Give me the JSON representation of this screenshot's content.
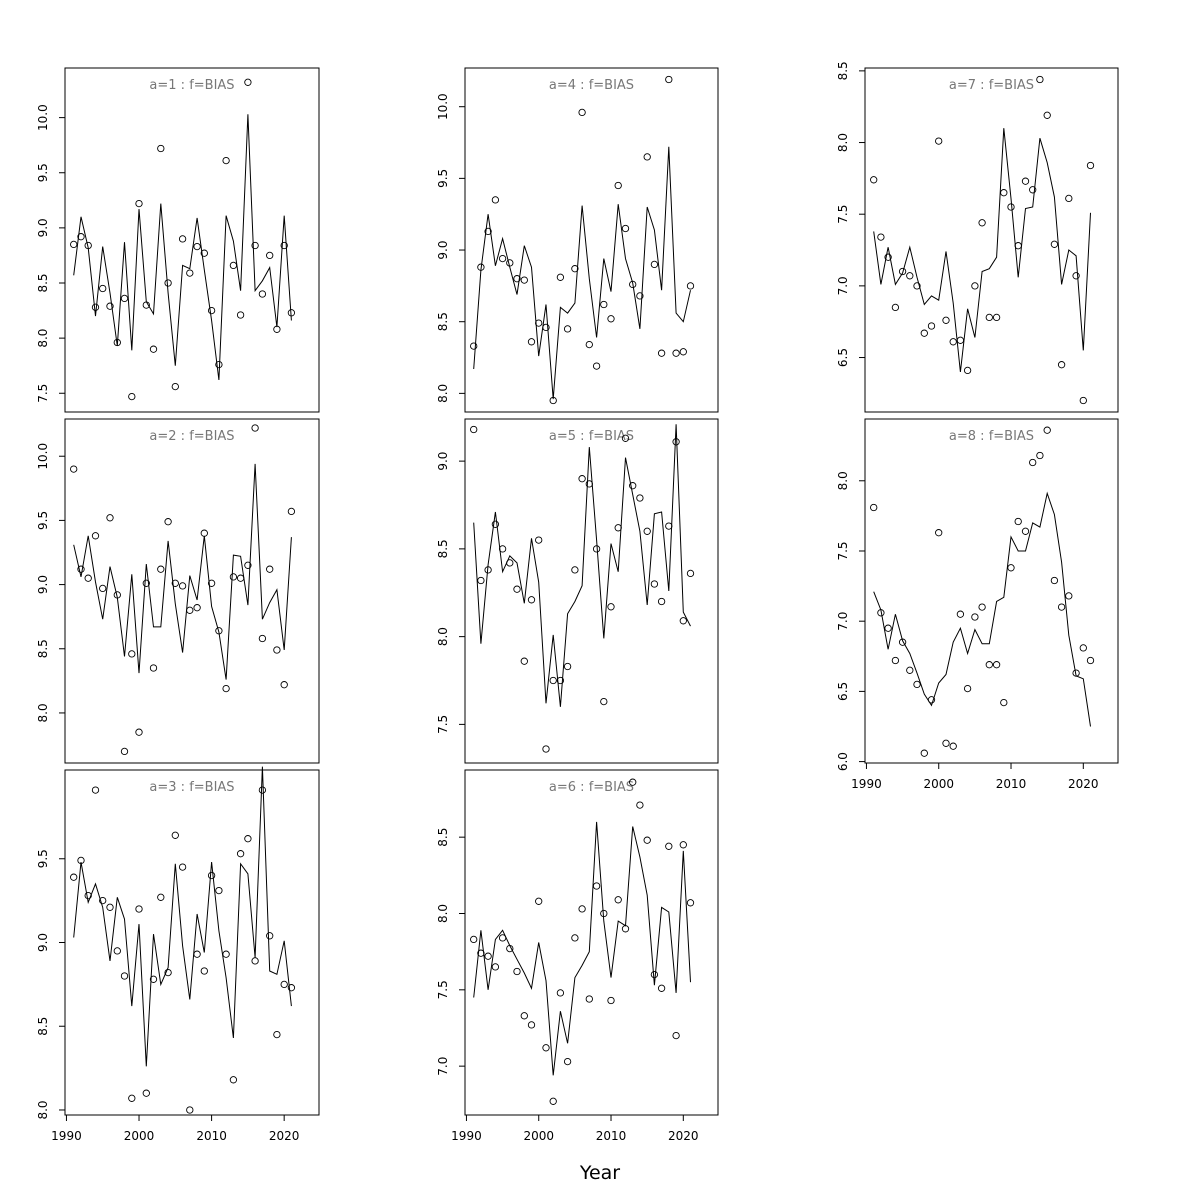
{
  "figure": {
    "xlabel": "Year"
  },
  "chart_data": [
    {
      "type": "line",
      "title": "a=1 : f=BIAS",
      "x": [
        1991,
        1992,
        1993,
        1994,
        1995,
        1996,
        1997,
        1998,
        1999,
        2000,
        2001,
        2002,
        2003,
        2004,
        2005,
        2006,
        2007,
        2008,
        2009,
        2010,
        2011,
        2012,
        2013,
        2014,
        2015,
        2016,
        2017,
        2018,
        2019,
        2020,
        2021
      ],
      "series": [
        {
          "name": "",
          "kind": "points",
          "values": [
            8.85,
            8.92,
            8.84,
            8.28,
            8.45,
            8.29,
            7.96,
            8.36,
            7.47,
            9.22,
            8.3,
            7.9,
            9.72,
            8.5,
            7.56,
            8.9,
            8.59,
            8.83,
            8.77,
            8.25,
            7.76,
            9.61,
            8.66,
            8.21,
            10.32,
            8.84,
            8.4,
            8.75,
            8.08,
            8.84,
            8.23
          ]
        },
        {
          "name": "",
          "kind": "line",
          "values": [
            8.57,
            9.1,
            8.82,
            8.2,
            8.83,
            8.41,
            7.93,
            8.87,
            7.89,
            9.17,
            8.33,
            8.22,
            9.22,
            8.41,
            7.75,
            8.66,
            8.63,
            9.09,
            8.62,
            8.16,
            7.62,
            9.11,
            8.88,
            8.43,
            10.03,
            8.43,
            8.52,
            8.64,
            8.1,
            9.11,
            8.16
          ]
        }
      ],
      "xlim": [
        1989.8,
        2024.8
      ],
      "ylim": [
        7.33,
        10.45
      ],
      "yticks": [
        7.5,
        8.0,
        8.5,
        9.0,
        9.5,
        10.0
      ],
      "xticks": []
    },
    {
      "type": "line",
      "title": "a=2 : f=BIAS",
      "x": [
        1991,
        1992,
        1993,
        1994,
        1995,
        1996,
        1997,
        1998,
        1999,
        2000,
        2001,
        2002,
        2003,
        2004,
        2005,
        2006,
        2007,
        2008,
        2009,
        2010,
        2011,
        2012,
        2013,
        2014,
        2015,
        2016,
        2017,
        2018,
        2019,
        2020,
        2021
      ],
      "series": [
        {
          "name": "",
          "kind": "points",
          "values": [
            9.9,
            9.12,
            9.05,
            9.38,
            8.97,
            9.52,
            8.92,
            7.7,
            8.46,
            7.85,
            9.01,
            8.35,
            9.12,
            9.49,
            9.01,
            8.99,
            8.8,
            8.82,
            9.4,
            9.01,
            8.64,
            8.19,
            9.06,
            9.05,
            9.15,
            10.22,
            8.58,
            9.12,
            8.49,
            8.22,
            9.57
          ]
        },
        {
          "name": "",
          "kind": "line",
          "values": [
            9.31,
            9.06,
            9.38,
            9.02,
            8.73,
            9.14,
            8.9,
            8.44,
            9.08,
            8.31,
            9.16,
            8.67,
            8.67,
            9.34,
            8.85,
            8.47,
            9.07,
            8.88,
            9.38,
            8.83,
            8.63,
            8.26,
            9.23,
            9.22,
            8.84,
            9.94,
            8.73,
            8.86,
            8.96,
            8.49,
            9.37
          ]
        }
      ],
      "xlim": [
        1989.8,
        2024.8
      ],
      "ylim": [
        7.61,
        10.29
      ],
      "yticks": [
        8.0,
        8.5,
        9.0,
        9.5,
        10.0
      ],
      "xticks": []
    },
    {
      "type": "line",
      "title": "a=3 : f=BIAS",
      "x": [
        1991,
        1992,
        1993,
        1994,
        1995,
        1996,
        1997,
        1998,
        1999,
        2000,
        2001,
        2002,
        2003,
        2004,
        2005,
        2006,
        2007,
        2008,
        2009,
        2010,
        2011,
        2012,
        2013,
        2014,
        2015,
        2016,
        2017,
        2018,
        2019,
        2020,
        2021
      ],
      "series": [
        {
          "name": "",
          "kind": "points",
          "values": [
            9.39,
            9.49,
            9.28,
            9.91,
            9.25,
            9.21,
            8.95,
            8.8,
            8.07,
            9.2,
            8.1,
            8.78,
            9.27,
            8.82,
            9.64,
            9.45,
            8.0,
            8.93,
            8.83,
            9.4,
            9.31,
            8.93,
            8.18,
            9.53,
            9.62,
            8.89,
            9.91,
            9.04,
            8.45,
            8.75,
            8.73
          ]
        },
        {
          "name": "",
          "kind": "line",
          "values": [
            9.03,
            9.48,
            9.24,
            9.35,
            9.21,
            8.89,
            9.27,
            9.14,
            8.62,
            9.11,
            8.26,
            9.05,
            8.75,
            8.85,
            9.47,
            8.98,
            8.66,
            9.17,
            8.94,
            9.48,
            9.07,
            8.79,
            8.43,
            9.47,
            9.41,
            8.91,
            10.05,
            8.83,
            8.81,
            9.01,
            8.62
          ]
        }
      ],
      "xlim": [
        1989.8,
        2024.8
      ],
      "ylim": [
        7.97,
        10.03
      ],
      "yticks": [
        8.0,
        8.5,
        9.0,
        9.5
      ],
      "xticks": [
        1990,
        2000,
        2010,
        2020
      ]
    },
    {
      "type": "line",
      "title": "a=4 : f=BIAS",
      "x": [
        1991,
        1992,
        1993,
        1994,
        1995,
        1996,
        1997,
        1998,
        1999,
        2000,
        2001,
        2002,
        2003,
        2004,
        2005,
        2006,
        2007,
        2008,
        2009,
        2010,
        2011,
        2012,
        2013,
        2014,
        2015,
        2016,
        2017,
        2018,
        2019,
        2020,
        2021
      ],
      "series": [
        {
          "name": "",
          "kind": "points",
          "values": [
            8.33,
            8.88,
            9.13,
            9.35,
            8.94,
            8.91,
            8.8,
            8.79,
            8.36,
            8.49,
            8.46,
            7.95,
            8.81,
            8.45,
            8.87,
            9.96,
            8.34,
            8.19,
            8.62,
            8.52,
            9.45,
            9.15,
            8.76,
            8.68,
            9.65,
            8.9,
            8.28,
            10.19,
            8.28,
            8.29,
            8.75
          ]
        },
        {
          "name": "",
          "kind": "line",
          "values": [
            8.17,
            8.86,
            9.25,
            8.89,
            9.08,
            8.88,
            8.69,
            9.03,
            8.88,
            8.26,
            8.62,
            7.96,
            8.6,
            8.56,
            8.63,
            9.31,
            8.8,
            8.39,
            8.94,
            8.71,
            9.32,
            8.94,
            8.77,
            8.45,
            9.3,
            9.14,
            8.72,
            9.72,
            8.56,
            8.5,
            8.72
          ]
        }
      ],
      "xlim": [
        1989.8,
        2024.8
      ],
      "ylim": [
        7.87,
        10.27
      ],
      "yticks": [
        8.0,
        8.5,
        9.0,
        9.5,
        10.0
      ],
      "xticks": []
    },
    {
      "type": "line",
      "title": "a=5 : f=BIAS",
      "x": [
        1991,
        1992,
        1993,
        1994,
        1995,
        1996,
        1997,
        1998,
        1999,
        2000,
        2001,
        2002,
        2003,
        2004,
        2005,
        2006,
        2007,
        2008,
        2009,
        2010,
        2011,
        2012,
        2013,
        2014,
        2015,
        2016,
        2017,
        2018,
        2019,
        2020,
        2021
      ],
      "series": [
        {
          "name": "",
          "kind": "points",
          "values": [
            9.18,
            8.32,
            8.38,
            8.64,
            8.5,
            8.42,
            8.27,
            7.86,
            8.21,
            8.55,
            7.36,
            7.75,
            7.75,
            7.83,
            8.38,
            8.9,
            8.87,
            8.5,
            7.63,
            8.17,
            8.62,
            9.13,
            8.86,
            8.79,
            8.6,
            8.3,
            8.2,
            8.63,
            9.11,
            8.09,
            8.36
          ]
        },
        {
          "name": "",
          "kind": "line",
          "values": [
            8.65,
            7.96,
            8.41,
            8.71,
            8.37,
            8.46,
            8.42,
            8.19,
            8.56,
            8.31,
            7.62,
            8.01,
            7.6,
            8.13,
            8.2,
            8.29,
            9.08,
            8.55,
            7.99,
            8.53,
            8.37,
            9.02,
            8.81,
            8.6,
            8.18,
            8.7,
            8.71,
            8.26,
            9.21,
            8.14,
            8.06
          ]
        }
      ],
      "xlim": [
        1989.8,
        2024.8
      ],
      "ylim": [
        7.28,
        9.24
      ],
      "yticks": [
        7.5,
        8.0,
        8.5,
        9.0
      ],
      "xticks": []
    },
    {
      "type": "line",
      "title": "a=6 : f=BIAS",
      "x": [
        1991,
        1992,
        1993,
        1994,
        1995,
        1996,
        1997,
        1998,
        1999,
        2000,
        2001,
        2002,
        2003,
        2004,
        2005,
        2006,
        2007,
        2008,
        2009,
        2010,
        2011,
        2012,
        2013,
        2014,
        2015,
        2016,
        2017,
        2018,
        2019,
        2020,
        2021
      ],
      "series": [
        {
          "name": "",
          "kind": "points",
          "values": [
            7.83,
            7.74,
            7.72,
            7.65,
            7.84,
            7.77,
            7.62,
            7.33,
            7.27,
            8.08,
            7.12,
            6.77,
            7.48,
            7.03,
            7.84,
            8.03,
            7.44,
            8.18,
            8.0,
            7.43,
            8.09,
            7.9,
            8.86,
            8.71,
            8.48,
            7.6,
            7.51,
            8.44,
            7.2,
            8.45,
            8.07
          ]
        },
        {
          "name": "",
          "kind": "line",
          "values": [
            7.45,
            7.89,
            7.5,
            7.83,
            7.89,
            7.79,
            7.7,
            7.61,
            7.51,
            7.81,
            7.56,
            6.94,
            7.36,
            7.15,
            7.58,
            7.66,
            7.75,
            8.6,
            7.95,
            7.58,
            7.95,
            7.92,
            8.57,
            8.37,
            8.12,
            7.53,
            8.04,
            8.01,
            7.48,
            8.41,
            7.55
          ]
        }
      ],
      "xlim": [
        1989.8,
        2024.8
      ],
      "ylim": [
        6.68,
        8.94
      ],
      "yticks": [
        7.0,
        7.5,
        8.0,
        8.5
      ],
      "xticks": [
        1990,
        2000,
        2010,
        2020
      ]
    },
    {
      "type": "line",
      "title": "a=7 : f=BIAS",
      "x": [
        1991,
        1992,
        1993,
        1994,
        1995,
        1996,
        1997,
        1998,
        1999,
        2000,
        2001,
        2002,
        2003,
        2004,
        2005,
        2006,
        2007,
        2008,
        2009,
        2010,
        2011,
        2012,
        2013,
        2014,
        2015,
        2016,
        2017,
        2018,
        2019,
        2020,
        2021
      ],
      "series": [
        {
          "name": "",
          "kind": "points",
          "values": [
            7.74,
            7.34,
            7.2,
            6.85,
            7.1,
            7.07,
            7.0,
            6.67,
            6.72,
            8.01,
            6.76,
            6.61,
            6.62,
            6.41,
            7.0,
            7.44,
            6.78,
            6.78,
            7.65,
            7.55,
            7.28,
            7.73,
            7.67,
            8.44,
            8.19,
            7.29,
            6.45,
            7.61,
            7.07,
            6.2,
            7.84
          ]
        },
        {
          "name": "",
          "kind": "line",
          "values": [
            7.38,
            7.01,
            7.27,
            7.01,
            7.09,
            7.27,
            7.06,
            6.87,
            6.93,
            6.9,
            7.24,
            6.88,
            6.4,
            6.84,
            6.64,
            7.1,
            7.12,
            7.2,
            8.1,
            7.61,
            7.06,
            7.54,
            7.55,
            8.03,
            7.86,
            7.62,
            7.01,
            7.25,
            7.21,
            6.55,
            7.51
          ]
        }
      ],
      "xlim": [
        1989.8,
        2024.8
      ],
      "ylim": [
        6.12,
        8.52
      ],
      "yticks": [
        6.5,
        7.0,
        7.5,
        8.0,
        8.5
      ],
      "xticks": []
    },
    {
      "type": "line",
      "title": "a=8 : f=BIAS",
      "x": [
        1991,
        1992,
        1993,
        1994,
        1995,
        1996,
        1997,
        1998,
        1999,
        2000,
        2001,
        2002,
        2003,
        2004,
        2005,
        2006,
        2007,
        2008,
        2009,
        2010,
        2011,
        2012,
        2013,
        2014,
        2015,
        2016,
        2017,
        2018,
        2019,
        2020,
        2021
      ],
      "series": [
        {
          "name": "",
          "kind": "points",
          "values": [
            7.81,
            7.06,
            6.95,
            6.72,
            6.85,
            6.65,
            6.55,
            6.06,
            6.44,
            7.63,
            6.13,
            6.11,
            7.05,
            6.52,
            7.03,
            7.1,
            6.69,
            6.69,
            6.42,
            7.38,
            7.71,
            7.64,
            8.13,
            8.18,
            8.36,
            7.29,
            7.1,
            7.18,
            6.63,
            6.81,
            6.72
          ]
        },
        {
          "name": "",
          "kind": "line",
          "values": [
            7.21,
            7.08,
            6.8,
            7.05,
            6.86,
            6.77,
            6.63,
            6.48,
            6.4,
            6.56,
            6.62,
            6.85,
            6.95,
            6.77,
            6.94,
            6.84,
            6.84,
            7.14,
            7.17,
            7.6,
            7.5,
            7.5,
            7.7,
            7.67,
            7.91,
            7.76,
            7.42,
            6.9,
            6.61,
            6.59,
            6.25
          ]
        }
      ],
      "xlim": [
        1989.8,
        2024.8
      ],
      "ylim": [
        5.99,
        8.44
      ],
      "yticks": [
        6.0,
        6.5,
        7.0,
        7.5,
        8.0
      ],
      "xticks": [
        1990,
        2000,
        2010,
        2020
      ]
    }
  ]
}
